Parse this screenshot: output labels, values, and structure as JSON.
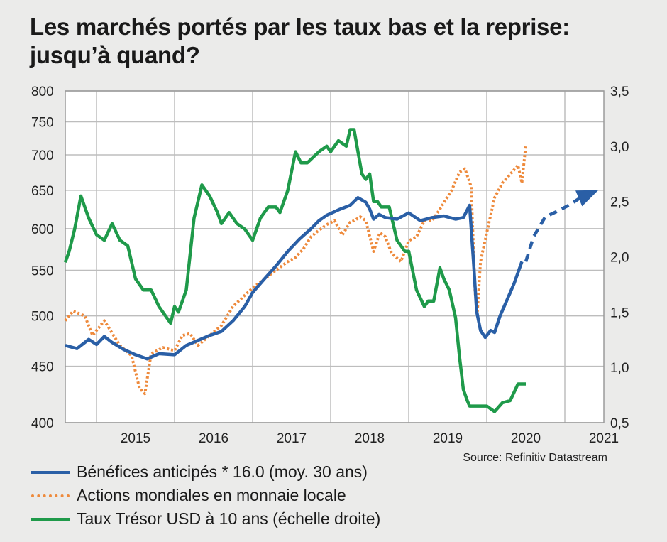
{
  "title": "Les marchés portés par les taux bas et la reprise: jusqu’à quand?",
  "source": "Source: Refinitiv Datastream",
  "colors": {
    "background": "#ebebea",
    "plot_background": "#ffffff",
    "grid": "#bdbdbd",
    "earnings": "#2a5fa6",
    "equities": "#ee8a3c",
    "treasury": "#1f9a4a"
  },
  "chart_data": {
    "type": "line",
    "title": "Les marchés portés par les taux bas et la reprise: jusqu’à quand?",
    "xlabel": "",
    "ylabel_left": "",
    "ylabel_right": "",
    "x_ticks": [
      "2015",
      "2016",
      "2017",
      "2018",
      "2019",
      "2020",
      "2021"
    ],
    "x_range": [
      2014.6,
      2021.5
    ],
    "y_left": {
      "scale": "log",
      "range": [
        400,
        800
      ],
      "ticks": [
        "400",
        "450",
        "500",
        "550",
        "600",
        "650",
        "700",
        "750",
        "800"
      ]
    },
    "y_right": {
      "scale": "linear",
      "range": [
        0.5,
        3.5
      ],
      "ticks": [
        "0,5",
        "1,0",
        "1,5",
        "2,0",
        "2,5",
        "3,0",
        "3,5"
      ]
    },
    "grid": true,
    "legend_position": "bottom-left",
    "series": [
      {
        "name": "Bénéfices anticipés * 16.0 (moy. 30 ans)",
        "axis": "left",
        "style": "solid",
        "x": [
          2014.6,
          2014.75,
          2014.9,
          2015.0,
          2015.1,
          2015.2,
          2015.35,
          2015.5,
          2015.65,
          2015.8,
          2016.0,
          2016.15,
          2016.3,
          2016.45,
          2016.6,
          2016.75,
          2016.9,
          2017.0,
          2017.15,
          2017.3,
          2017.45,
          2017.6,
          2017.75,
          2017.85,
          2017.95,
          2018.1,
          2018.25,
          2018.35,
          2018.45,
          2018.5,
          2018.55,
          2018.62,
          2018.7,
          2018.85,
          2019.0,
          2019.15,
          2019.3,
          2019.45,
          2019.6,
          2019.7,
          2019.78,
          2019.83,
          2019.87,
          2019.92,
          2019.98,
          2020.05,
          2020.1,
          2020.17,
          2020.25,
          2020.35,
          2020.45
        ],
        "values": [
          470,
          467,
          476,
          471,
          479,
          473,
          466,
          461,
          457,
          462,
          461,
          470,
          475,
          480,
          484,
          495,
          510,
          525,
          540,
          555,
          572,
          587,
          600,
          610,
          617,
          624,
          630,
          640,
          634,
          625,
          612,
          618,
          614,
          612,
          620,
          610,
          614,
          616,
          612,
          614,
          630,
          560,
          505,
          485,
          478,
          485,
          483,
          500,
          515,
          535,
          560
        ]
      },
      {
        "name": "Actions mondiales en monnaie locale",
        "axis": "left",
        "style": "dotted",
        "x": [
          2014.6,
          2014.7,
          2014.85,
          2014.95,
          2015.1,
          2015.3,
          2015.45,
          2015.55,
          2015.62,
          2015.7,
          2015.85,
          2016.0,
          2016.1,
          2016.2,
          2016.3,
          2016.45,
          2016.6,
          2016.75,
          2016.85,
          2017.0,
          2017.15,
          2017.3,
          2017.45,
          2017.55,
          2017.65,
          2017.75,
          2017.85,
          2017.95,
          2018.05,
          2018.15,
          2018.2,
          2018.25,
          2018.3,
          2018.38,
          2018.45,
          2018.55,
          2018.63,
          2018.7,
          2018.78,
          2018.9,
          2019.0,
          2019.1,
          2019.2,
          2019.3,
          2019.4,
          2019.55,
          2019.65,
          2019.72,
          2019.8,
          2019.85,
          2019.88,
          2019.92,
          2020.0,
          2020.1,
          2020.2,
          2020.3,
          2020.4,
          2020.45,
          2020.5
        ],
        "values": [
          495,
          505,
          500,
          480,
          495,
          470,
          460,
          430,
          425,
          462,
          468,
          465,
          480,
          482,
          470,
          480,
          490,
          510,
          518,
          530,
          540,
          550,
          560,
          565,
          575,
          590,
          598,
          605,
          610,
          592,
          600,
          608,
          610,
          615,
          610,
          572,
          595,
          590,
          570,
          560,
          585,
          590,
          610,
          610,
          625,
          650,
          675,
          680,
          655,
          525,
          505,
          560,
          595,
          640,
          660,
          672,
          685,
          660,
          715
        ]
      },
      {
        "name": "Taux Trésor USD à 10 ans (échelle droite)",
        "axis": "right",
        "style": "solid",
        "x": [
          2014.6,
          2014.65,
          2014.72,
          2014.8,
          2014.9,
          2015.0,
          2015.1,
          2015.2,
          2015.3,
          2015.4,
          2015.5,
          2015.6,
          2015.7,
          2015.8,
          2015.95,
          2016.0,
          2016.05,
          2016.15,
          2016.25,
          2016.35,
          2016.45,
          2016.55,
          2016.6,
          2016.7,
          2016.8,
          2016.9,
          2017.0,
          2017.1,
          2017.2,
          2017.3,
          2017.35,
          2017.45,
          2017.55,
          2017.62,
          2017.7,
          2017.85,
          2017.95,
          2018.0,
          2018.1,
          2018.2,
          2018.25,
          2018.3,
          2018.4,
          2018.45,
          2018.5,
          2018.55,
          2018.6,
          2018.65,
          2018.75,
          2018.85,
          2018.95,
          2019.0,
          2019.1,
          2019.2,
          2019.25,
          2019.32,
          2019.4,
          2019.45,
          2019.52,
          2019.6,
          2019.65,
          2019.7,
          2019.75,
          2019.78,
          2019.82,
          2019.9,
          2020.0,
          2020.1,
          2020.2,
          2020.3,
          2020.4,
          2020.5
        ],
        "values": [
          1.95,
          2.05,
          2.25,
          2.55,
          2.35,
          2.2,
          2.15,
          2.3,
          2.15,
          2.1,
          1.8,
          1.7,
          1.7,
          1.55,
          1.4,
          1.55,
          1.5,
          1.7,
          2.35,
          2.65,
          2.55,
          2.4,
          2.3,
          2.4,
          2.3,
          2.25,
          2.15,
          2.35,
          2.45,
          2.45,
          2.4,
          2.6,
          2.95,
          2.85,
          2.85,
          2.95,
          3.0,
          2.95,
          3.05,
          3.0,
          3.15,
          3.15,
          2.75,
          2.7,
          2.75,
          2.5,
          2.5,
          2.45,
          2.45,
          2.15,
          2.05,
          2.05,
          1.7,
          1.55,
          1.6,
          1.6,
          1.9,
          1.8,
          1.7,
          1.45,
          1.1,
          0.8,
          0.7,
          0.65,
          0.65,
          0.65,
          0.65,
          0.6,
          0.68,
          0.7,
          0.85,
          0.85
        ]
      },
      {
        "name": "",
        "axis": "left",
        "style": "dashed",
        "x": [
          2020.5,
          2020.6,
          2020.75,
          2020.9,
          2021.05,
          2021.2,
          2021.38
        ],
        "values": [
          560,
          590,
          615,
          622,
          630,
          640,
          648
        ],
        "end_marker": "triangle"
      }
    ]
  },
  "legend": [
    {
      "label": "Bénéfices anticipés * 16.0 (moy. 30 ans)",
      "style": "solid",
      "color": "#2a5fa6"
    },
    {
      "label": "Actions mondiales en monnaie locale",
      "style": "dotted",
      "color": "#ee8a3c"
    },
    {
      "label": "Taux Trésor USD à 10 ans (échelle droite)",
      "style": "solid",
      "color": "#1f9a4a"
    }
  ]
}
